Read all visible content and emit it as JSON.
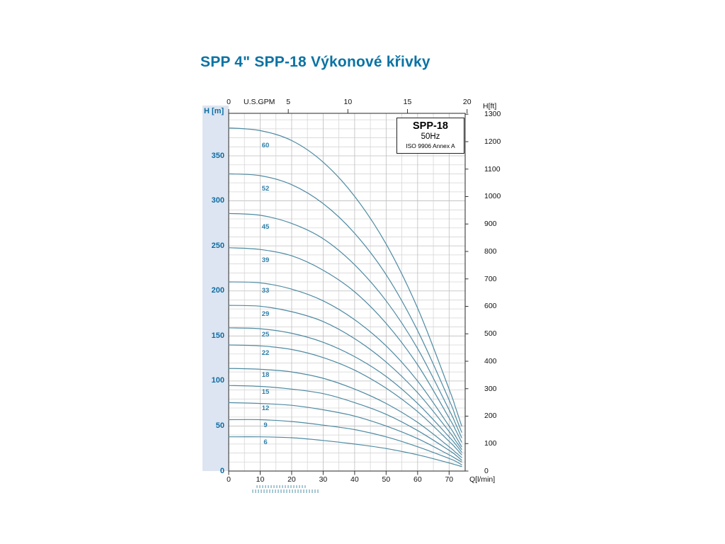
{
  "page": {
    "title": "SPP 4\" SPP-18 Výkonové křivky"
  },
  "chart_data": {
    "type": "line",
    "title": "SPP 4\" SPP-18 Výkonové křivky",
    "legend": {
      "position": "top-right",
      "model": "SPP-18",
      "frequency": "50Hz",
      "standard": "ISO 9906 Annex A"
    },
    "axes": {
      "left": {
        "label": "H [m]",
        "unit": "m",
        "ticks": [
          0,
          50,
          100,
          150,
          200,
          250,
          300,
          350
        ],
        "range": [
          0,
          397.2
        ]
      },
      "right": {
        "label": "H[ft]",
        "unit": "ft",
        "ticks": [
          0,
          100,
          200,
          300,
          400,
          500,
          600,
          700,
          800,
          900,
          1000,
          1100,
          1200,
          1300
        ]
      },
      "top": {
        "label": "U.S.GPM",
        "unit": "gpm",
        "ticks": [
          0,
          5,
          10,
          15,
          20
        ]
      },
      "bottom": {
        "label": "Q[l/min]",
        "unit": "l/min",
        "ticks": [
          0,
          10,
          20,
          30,
          40,
          50,
          60,
          70
        ],
        "range": [
          0,
          75.1
        ]
      }
    },
    "grid": {
      "on": true,
      "h_step_m": 10,
      "v_step_lmin": 5
    },
    "q_lmin": [
      0,
      10,
      20,
      30,
      40,
      50,
      60,
      70,
      72,
      74
    ],
    "series": [
      {
        "stages": 60,
        "H_m": [
          381,
          378,
          367,
          343,
          305,
          252,
          181,
          91,
          71,
          50
        ]
      },
      {
        "stages": 52,
        "H_m": [
          330,
          328,
          318,
          297,
          264,
          218,
          156,
          79,
          61,
          43
        ]
      },
      {
        "stages": 45,
        "H_m": [
          286,
          284,
          275,
          258,
          229,
          189,
          136,
          68,
          53,
          37
        ]
      },
      {
        "stages": 39,
        "H_m": [
          248,
          246,
          239,
          223,
          199,
          164,
          118,
          59,
          46,
          32
        ]
      },
      {
        "stages": 33,
        "H_m": [
          210,
          209,
          202,
          189,
          168,
          139,
          100,
          50,
          39,
          27
        ]
      },
      {
        "stages": 29,
        "H_m": [
          184,
          183,
          177,
          166,
          147,
          121,
          87,
          44,
          34,
          24
        ]
      },
      {
        "stages": 25,
        "H_m": [
          159,
          158,
          153,
          143,
          127,
          105,
          75,
          38,
          30,
          21
        ]
      },
      {
        "stages": 22,
        "H_m": [
          140,
          139,
          135,
          126,
          112,
          92,
          66,
          33,
          26,
          18
        ]
      },
      {
        "stages": 18,
        "H_m": [
          114,
          113,
          110,
          103,
          91,
          75,
          54,
          27,
          21,
          15
        ]
      },
      {
        "stages": 15,
        "H_m": [
          95,
          94,
          91,
          86,
          76,
          63,
          45,
          23,
          18,
          12
        ]
      },
      {
        "stages": 12,
        "H_m": [
          76,
          75,
          73,
          68,
          61,
          50,
          36,
          18,
          14,
          10
        ]
      },
      {
        "stages": 9,
        "H_m": [
          57,
          57,
          55,
          51,
          46,
          38,
          27,
          14,
          11,
          7
        ]
      },
      {
        "stages": 6,
        "H_m": [
          38,
          38,
          37,
          34,
          30,
          25,
          18,
          9,
          7,
          5
        ]
      }
    ],
    "colors": {
      "title": "#0a73a4",
      "axis_blue": "#0e6ba3",
      "curve": "#4e8aa2",
      "curve_label": "#2f7fa8",
      "grid_minor": "#d6d6d6",
      "grid_major": "#bdbdbd",
      "border": "#4a4a4a",
      "strip_bg": "#dce5f1"
    }
  }
}
